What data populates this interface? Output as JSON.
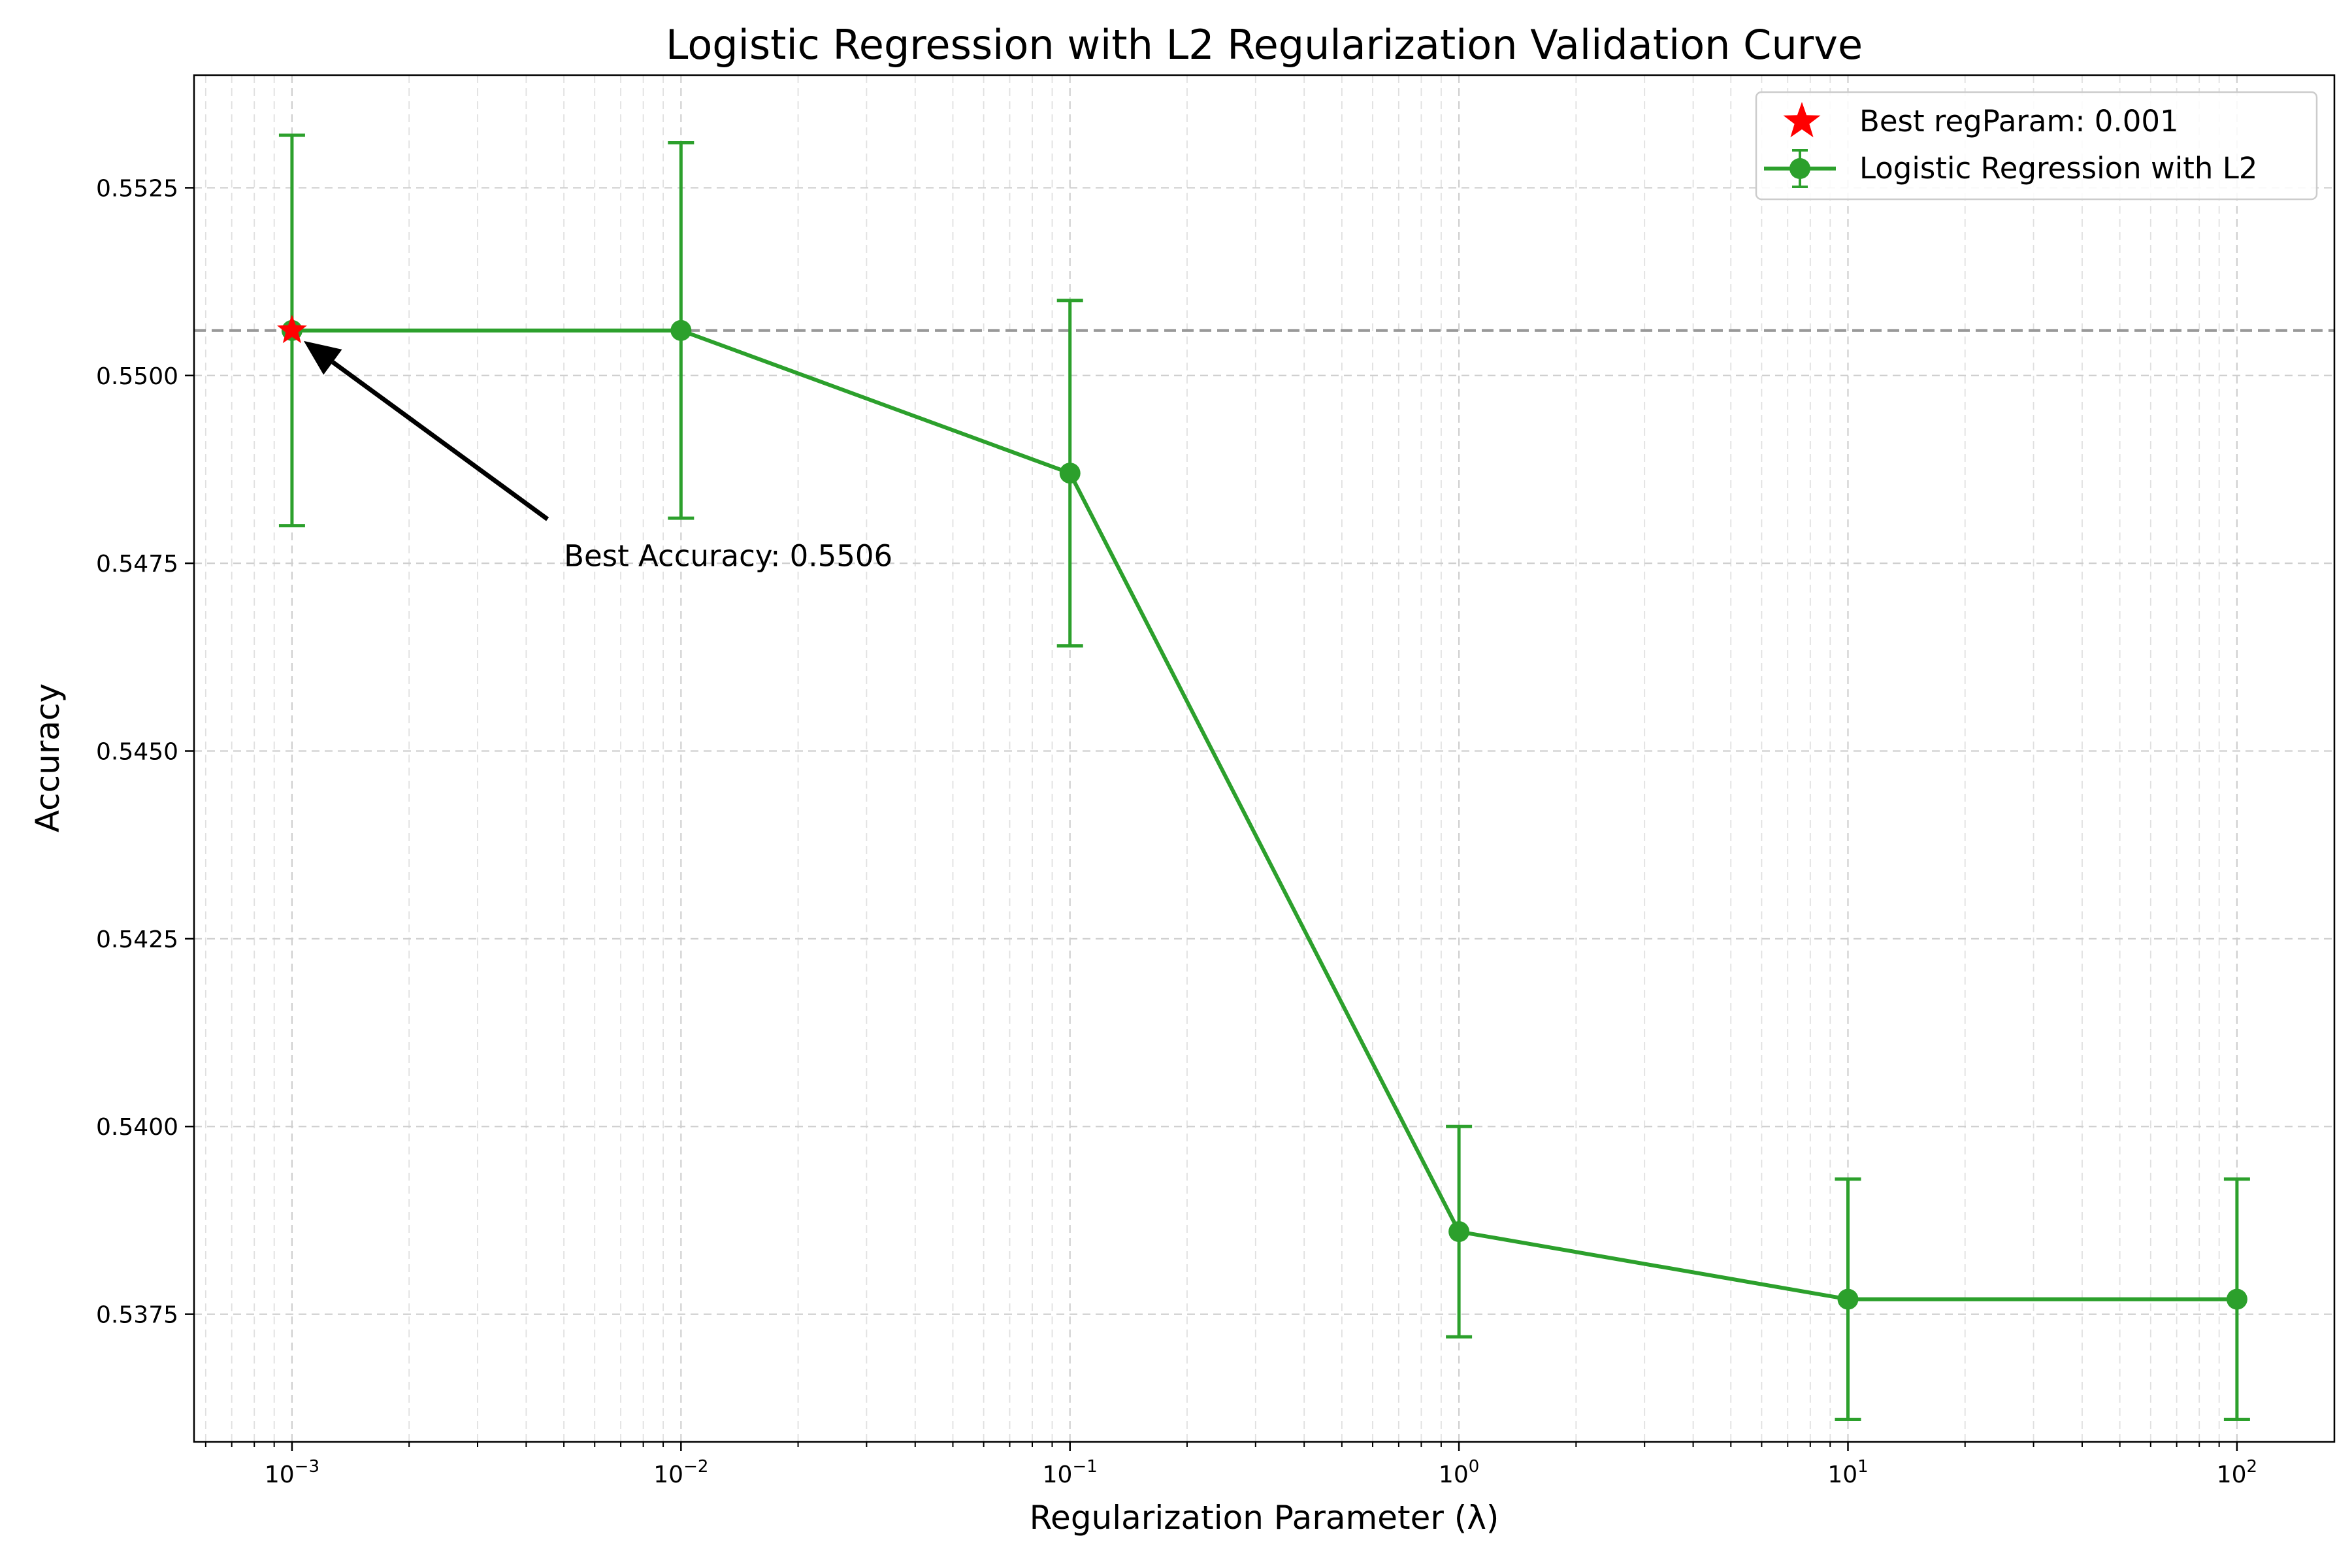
{
  "chart_data": {
    "type": "line",
    "title": "Logistic Regression with L2 Regularization Validation Curve",
    "xlabel": "Regularization Parameter (λ)",
    "ylabel": "Accuracy",
    "x_scale": "log",
    "xlim": [
      0.00056,
      178
    ],
    "ylim": [
      0.5358,
      0.554
    ],
    "grid": {
      "major": true,
      "minor": true,
      "style": "dashed"
    },
    "legend_position": "top-right",
    "x_ticks": [
      {
        "value": 0.001,
        "base": "10",
        "exp": "−3"
      },
      {
        "value": 0.01,
        "base": "10",
        "exp": "−2"
      },
      {
        "value": 0.1,
        "base": "10",
        "exp": "−1"
      },
      {
        "value": 1,
        "base": "10",
        "exp": "0"
      },
      {
        "value": 10,
        "base": "10",
        "exp": "1"
      },
      {
        "value": 100,
        "base": "10",
        "exp": "2"
      }
    ],
    "y_ticks": [
      {
        "value": 0.5375,
        "label": "0.5375"
      },
      {
        "value": 0.54,
        "label": "0.5400"
      },
      {
        "value": 0.5425,
        "label": "0.5425"
      },
      {
        "value": 0.545,
        "label": "0.5450"
      },
      {
        "value": 0.5475,
        "label": "0.5475"
      },
      {
        "value": 0.55,
        "label": "0.5500"
      },
      {
        "value": 0.5525,
        "label": "0.5525"
      }
    ],
    "series": [
      {
        "name": "Logistic Regression with L2",
        "color": "#2ca02c",
        "x": [
          0.001,
          0.01,
          0.1,
          1,
          10,
          100
        ],
        "y": [
          0.5506,
          0.5506,
          0.5487,
          0.5386,
          0.5377,
          0.5377
        ],
        "yerr": [
          0.0026,
          0.0025,
          0.0023,
          0.0014,
          0.0016,
          0.0016
        ]
      }
    ],
    "best_point": {
      "label": "Best regParam: 0.001",
      "x": 0.001,
      "y": 0.5506,
      "color": "#ff0000"
    },
    "reference_line": {
      "y": 0.5506,
      "color": "#999999",
      "style": "dashed"
    },
    "annotation": {
      "text": "Best Accuracy: 0.5506",
      "text_x": 0.005,
      "text_y": 0.5476,
      "arrow_to_x": 0.001,
      "arrow_to_y": 0.5506
    }
  }
}
